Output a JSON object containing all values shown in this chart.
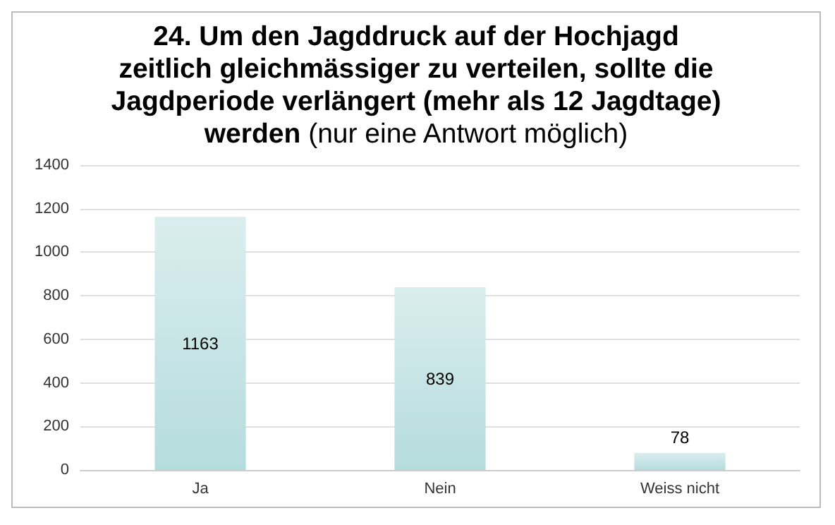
{
  "chart_data": {
    "type": "bar",
    "title": "24. Um den Jagddruck auf der Hochjagd zeitlich gleichmässiger zu verteilen, sollte die Jagdperiode verlängert (mehr als 12 Jagdtage) werden",
    "subtitle": "(nur eine Antwort möglich)",
    "categories": [
      "Ja",
      "Nein",
      "Weiss nicht"
    ],
    "values": [
      1163,
      839,
      78
    ],
    "color": "#b5dcdd",
    "ylim": [
      0,
      1400
    ],
    "yticks": [
      0,
      200,
      400,
      600,
      800,
      1000,
      1200,
      1400
    ],
    "grid": "y",
    "data_labels": true
  }
}
